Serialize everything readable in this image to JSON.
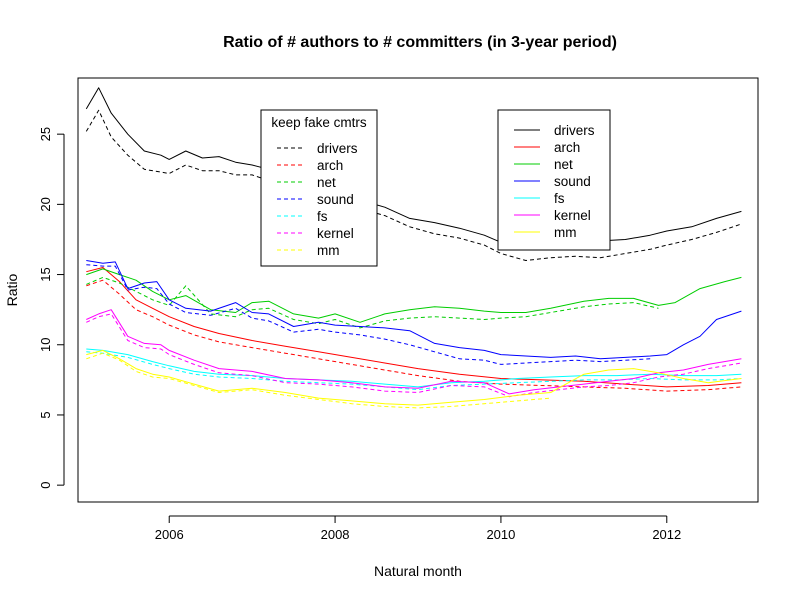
{
  "chart_data": {
    "type": "line",
    "title": "Ratio of # authors to # committers (in 3-year period)",
    "xlabel": "Natural month",
    "ylabel": "Ratio",
    "xlim": [
      2004.9,
      2013.1
    ],
    "ylim": [
      -1.2,
      29.0
    ],
    "xticks": [
      2006,
      2008,
      2010,
      2012
    ],
    "yticks": [
      0,
      5,
      10,
      15,
      20,
      25
    ],
    "xtick_labels": [
      "2006",
      "2008",
      "2010",
      "2012"
    ],
    "ytick_labels": [
      "0",
      "5",
      "10",
      "15",
      "20",
      "25"
    ],
    "grid": false,
    "legends": [
      {
        "title": "keep fake cmtrs",
        "placement": "top-center",
        "style": "dashed",
        "entries": [
          "drivers",
          "arch",
          "net",
          "sound",
          "fs",
          "kernel",
          "mm"
        ]
      },
      {
        "title": "",
        "placement": "top-right",
        "style": "solid",
        "entries": [
          "drivers",
          "arch",
          "net",
          "sound",
          "fs",
          "kernel",
          "mm"
        ]
      }
    ],
    "colors": {
      "drivers": "#000000",
      "arch": "#ff0000",
      "net": "#00cd00",
      "sound": "#0000ff",
      "fs": "#00ffff",
      "kernel": "#ff00ff",
      "mm": "#ffff00"
    },
    "series": [
      {
        "name": "drivers",
        "style": "solid",
        "x": [
          2005.0,
          2005.15,
          2005.3,
          2005.5,
          2005.7,
          2005.9,
          2006.0,
          2006.2,
          2006.4,
          2006.6,
          2006.8,
          2007.0,
          2007.2,
          2007.5,
          2007.8,
          2008.0,
          2008.3,
          2008.6,
          2008.9,
          2009.2,
          2009.5,
          2009.8,
          2010.0,
          2010.3,
          2010.6,
          2010.9,
          2011.2,
          2011.5,
          2011.8,
          2012.0,
          2012.3,
          2012.6,
          2012.9
        ],
        "y": [
          26.8,
          28.3,
          26.5,
          25.0,
          23.8,
          23.5,
          23.2,
          23.8,
          23.3,
          23.4,
          23.0,
          22.8,
          22.5,
          21.8,
          21.2,
          20.8,
          20.3,
          19.8,
          19.0,
          18.7,
          18.3,
          17.8,
          17.3,
          17.0,
          17.2,
          17.3,
          17.4,
          17.5,
          17.8,
          18.1,
          18.4,
          19.0,
          19.5
        ]
      },
      {
        "name": "drivers",
        "style": "dashed",
        "x": [
          2005.0,
          2005.15,
          2005.3,
          2005.5,
          2005.7,
          2005.9,
          2006.0,
          2006.2,
          2006.4,
          2006.6,
          2006.8,
          2007.0,
          2007.2,
          2007.5,
          2007.8,
          2008.0,
          2008.3,
          2008.6,
          2008.9,
          2009.2,
          2009.5,
          2009.8,
          2010.0,
          2010.3,
          2010.6,
          2010.9,
          2011.2,
          2011.5,
          2011.8,
          2012.0,
          2012.3,
          2012.6,
          2012.9
        ],
        "y": [
          25.2,
          26.7,
          24.8,
          23.5,
          22.5,
          22.3,
          22.2,
          22.8,
          22.4,
          22.4,
          22.1,
          22.1,
          21.7,
          21.0,
          20.4,
          20.0,
          19.7,
          19.2,
          18.4,
          17.9,
          17.6,
          17.1,
          16.5,
          16.0,
          16.2,
          16.3,
          16.2,
          16.5,
          16.8,
          17.1,
          17.5,
          18.0,
          18.6
        ]
      },
      {
        "name": "arch",
        "style": "solid",
        "x": [
          2005.0,
          2005.2,
          2005.4,
          2005.6,
          2005.8,
          2006.0,
          2006.3,
          2006.6,
          2007.0,
          2007.4,
          2007.8,
          2008.2,
          2008.6,
          2009.0,
          2009.5,
          2010.0,
          2010.5,
          2011.0,
          2011.5,
          2012.0,
          2012.5,
          2012.9
        ],
        "y": [
          15.2,
          15.5,
          14.5,
          13.2,
          12.6,
          12.0,
          11.3,
          10.8,
          10.3,
          9.9,
          9.5,
          9.1,
          8.7,
          8.3,
          7.9,
          7.6,
          7.5,
          7.4,
          7.2,
          7.0,
          7.1,
          7.3
        ]
      },
      {
        "name": "arch",
        "style": "dashed",
        "x": [
          2005.0,
          2005.2,
          2005.4,
          2005.6,
          2005.8,
          2006.0,
          2006.3,
          2006.6,
          2007.0,
          2007.4,
          2007.8,
          2008.2,
          2008.6,
          2009.0,
          2009.5,
          2010.0,
          2010.5,
          2011.0,
          2011.5,
          2012.0,
          2012.5,
          2012.9
        ],
        "y": [
          14.2,
          14.6,
          13.6,
          12.5,
          12.0,
          11.4,
          10.7,
          10.2,
          9.8,
          9.4,
          9.0,
          8.6,
          8.2,
          7.8,
          7.4,
          7.2,
          7.1,
          7.0,
          6.9,
          6.7,
          6.8,
          7.0
        ]
      },
      {
        "name": "net",
        "style": "solid",
        "x": [
          2005.0,
          2005.2,
          2005.4,
          2005.6,
          2005.8,
          2006.0,
          2006.2,
          2006.5,
          2006.8,
          2007.0,
          2007.2,
          2007.5,
          2007.8,
          2008.0,
          2008.3,
          2008.6,
          2008.9,
          2009.2,
          2009.5,
          2009.8,
          2010.0,
          2010.3,
          2010.6,
          2011.0,
          2011.3,
          2011.6,
          2011.9,
          2012.1,
          2012.4,
          2012.7,
          2012.9
        ],
        "y": [
          15.0,
          15.4,
          15.0,
          14.6,
          13.8,
          13.2,
          13.5,
          12.5,
          12.3,
          13.0,
          13.1,
          12.2,
          11.9,
          12.2,
          11.6,
          12.2,
          12.5,
          12.7,
          12.6,
          12.4,
          12.3,
          12.3,
          12.6,
          13.1,
          13.3,
          13.3,
          12.8,
          13.0,
          14.0,
          14.5,
          14.8
        ]
      },
      {
        "name": "net",
        "style": "dashed",
        "x": [
          2005.0,
          2005.2,
          2005.4,
          2005.6,
          2005.8,
          2006.0,
          2006.2,
          2006.5,
          2006.8,
          2007.0,
          2007.2,
          2007.5,
          2007.8,
          2008.0,
          2008.3,
          2008.6,
          2008.9,
          2009.2,
          2009.5,
          2009.8,
          2010.0,
          2010.3,
          2010.6,
          2011.0,
          2011.3,
          2011.6,
          2011.9
        ],
        "y": [
          14.3,
          14.8,
          14.4,
          13.8,
          13.2,
          12.8,
          14.2,
          12.2,
          12.0,
          12.5,
          12.6,
          11.8,
          11.5,
          11.8,
          11.2,
          11.7,
          11.9,
          12.0,
          11.9,
          11.8,
          11.9,
          12.0,
          12.3,
          12.7,
          12.9,
          13.0,
          12.6
        ]
      },
      {
        "name": "sound",
        "style": "solid",
        "x": [
          2005.0,
          2005.2,
          2005.35,
          2005.5,
          2005.7,
          2005.85,
          2006.0,
          2006.2,
          2006.5,
          2006.8,
          2007.0,
          2007.2,
          2007.5,
          2007.8,
          2008.0,
          2008.3,
          2008.6,
          2008.9,
          2009.2,
          2009.5,
          2009.8,
          2010.0,
          2010.3,
          2010.6,
          2010.9,
          2011.2,
          2011.5,
          2011.8,
          2012.0,
          2012.2,
          2012.4,
          2012.6,
          2012.9
        ],
        "y": [
          16.0,
          15.8,
          15.9,
          14.0,
          14.4,
          14.5,
          13.2,
          12.6,
          12.4,
          13.0,
          12.3,
          12.2,
          11.3,
          11.6,
          11.4,
          11.3,
          11.2,
          11.0,
          10.1,
          9.8,
          9.6,
          9.3,
          9.2,
          9.1,
          9.2,
          9.0,
          9.1,
          9.2,
          9.3,
          10.0,
          10.6,
          11.8,
          12.4
        ]
      },
      {
        "name": "sound",
        "style": "dashed",
        "x": [
          2005.0,
          2005.2,
          2005.35,
          2005.5,
          2005.7,
          2005.85,
          2006.0,
          2006.2,
          2006.5,
          2006.8,
          2007.0,
          2007.2,
          2007.5,
          2007.8,
          2008.0,
          2008.3,
          2008.6,
          2008.9,
          2009.2,
          2009.5,
          2009.8,
          2010.0,
          2010.3,
          2010.6,
          2010.9,
          2011.2,
          2011.5,
          2011.8
        ],
        "y": [
          15.7,
          15.6,
          15.6,
          13.9,
          14.1,
          14.0,
          12.9,
          12.3,
          12.1,
          12.6,
          11.9,
          11.7,
          10.9,
          11.1,
          10.9,
          10.7,
          10.4,
          10.0,
          9.5,
          9.0,
          8.9,
          8.6,
          8.7,
          8.8,
          8.9,
          8.8,
          8.9,
          9.0
        ]
      },
      {
        "name": "fs",
        "style": "solid",
        "x": [
          2005.0,
          2005.2,
          2005.5,
          2005.8,
          2006.0,
          2006.3,
          2006.6,
          2007.0,
          2007.4,
          2007.8,
          2008.2,
          2008.6,
          2009.0,
          2009.4,
          2009.8,
          2010.2,
          2010.6,
          2011.0,
          2011.4,
          2011.8,
          2012.2,
          2012.6,
          2012.9
        ],
        "y": [
          9.7,
          9.6,
          9.3,
          8.8,
          8.5,
          8.1,
          7.9,
          7.8,
          7.6,
          7.5,
          7.4,
          7.2,
          7.0,
          7.3,
          7.4,
          7.6,
          7.7,
          7.8,
          7.8,
          7.9,
          7.8,
          7.8,
          7.9
        ]
      },
      {
        "name": "fs",
        "style": "dashed",
        "x": [
          2005.0,
          2005.2,
          2005.5,
          2005.8,
          2006.0,
          2006.3,
          2006.6,
          2007.0,
          2007.4,
          2007.8,
          2008.2,
          2008.6,
          2009.0,
          2009.4,
          2009.8,
          2010.2,
          2010.6,
          2011.0,
          2011.4,
          2011.8,
          2012.2,
          2012.6,
          2012.9
        ],
        "y": [
          9.5,
          9.4,
          9.1,
          8.6,
          8.3,
          7.9,
          7.7,
          7.6,
          7.4,
          7.3,
          7.2,
          7.0,
          6.8,
          7.1,
          7.2,
          7.3,
          7.4,
          7.5,
          7.5,
          7.6,
          7.5,
          7.5,
          7.6
        ]
      },
      {
        "name": "kernel",
        "style": "solid",
        "x": [
          2005.0,
          2005.15,
          2005.3,
          2005.5,
          2005.7,
          2005.9,
          2006.0,
          2006.3,
          2006.6,
          2007.0,
          2007.4,
          2007.8,
          2008.2,
          2008.6,
          2009.0,
          2009.4,
          2009.8,
          2010.1,
          2010.4,
          2010.7,
          2011.0,
          2011.3,
          2011.6,
          2011.9,
          2012.2,
          2012.5,
          2012.9
        ],
        "y": [
          11.8,
          12.2,
          12.5,
          10.6,
          10.1,
          10.0,
          9.6,
          8.9,
          8.3,
          8.1,
          7.6,
          7.5,
          7.3,
          7.0,
          6.9,
          7.4,
          7.3,
          6.5,
          6.8,
          7.0,
          7.2,
          7.4,
          7.6,
          8.0,
          8.2,
          8.6,
          9.0
        ]
      },
      {
        "name": "kernel",
        "style": "dashed",
        "x": [
          2005.0,
          2005.15,
          2005.3,
          2005.5,
          2005.7,
          2005.9,
          2006.0,
          2006.3,
          2006.6,
          2007.0,
          2007.4,
          2007.8,
          2008.2,
          2008.6,
          2009.0,
          2009.4,
          2009.8,
          2010.1,
          2010.4,
          2010.7,
          2011.0,
          2011.3,
          2011.6,
          2011.9,
          2012.2,
          2012.5,
          2012.9
        ],
        "y": [
          11.6,
          12.0,
          12.2,
          10.3,
          9.8,
          9.7,
          9.3,
          8.6,
          8.0,
          7.8,
          7.3,
          7.2,
          7.0,
          6.7,
          6.6,
          7.1,
          7.0,
          6.3,
          6.6,
          6.8,
          7.0,
          7.1,
          7.3,
          7.7,
          7.9,
          8.3,
          8.7
        ]
      },
      {
        "name": "mm",
        "style": "solid",
        "x": [
          2005.0,
          2005.2,
          2005.4,
          2005.6,
          2005.8,
          2006.0,
          2006.3,
          2006.6,
          2007.0,
          2007.4,
          2007.8,
          2008.2,
          2008.6,
          2009.0,
          2009.4,
          2009.8,
          2010.2,
          2010.6,
          2011.0,
          2011.3,
          2011.6,
          2011.9,
          2012.2,
          2012.5,
          2012.9
        ],
        "y": [
          9.3,
          9.6,
          9.0,
          8.3,
          7.9,
          7.7,
          7.2,
          6.7,
          6.9,
          6.6,
          6.2,
          6.0,
          5.8,
          5.7,
          5.9,
          6.1,
          6.4,
          6.6,
          7.9,
          8.2,
          8.3,
          8.0,
          7.6,
          7.3,
          7.6
        ]
      },
      {
        "name": "mm",
        "style": "dashed",
        "x": [
          2005.0,
          2005.2,
          2005.4,
          2005.6,
          2005.8,
          2006.0,
          2006.3,
          2006.6,
          2007.0,
          2007.4,
          2007.8,
          2008.2,
          2008.6,
          2009.0,
          2009.4,
          2009.8,
          2010.2,
          2010.6
        ],
        "y": [
          9.0,
          9.4,
          8.9,
          8.1,
          7.7,
          7.6,
          7.1,
          6.6,
          6.8,
          6.4,
          6.1,
          5.8,
          5.6,
          5.5,
          5.6,
          5.8,
          6.0,
          6.2
        ]
      }
    ]
  }
}
